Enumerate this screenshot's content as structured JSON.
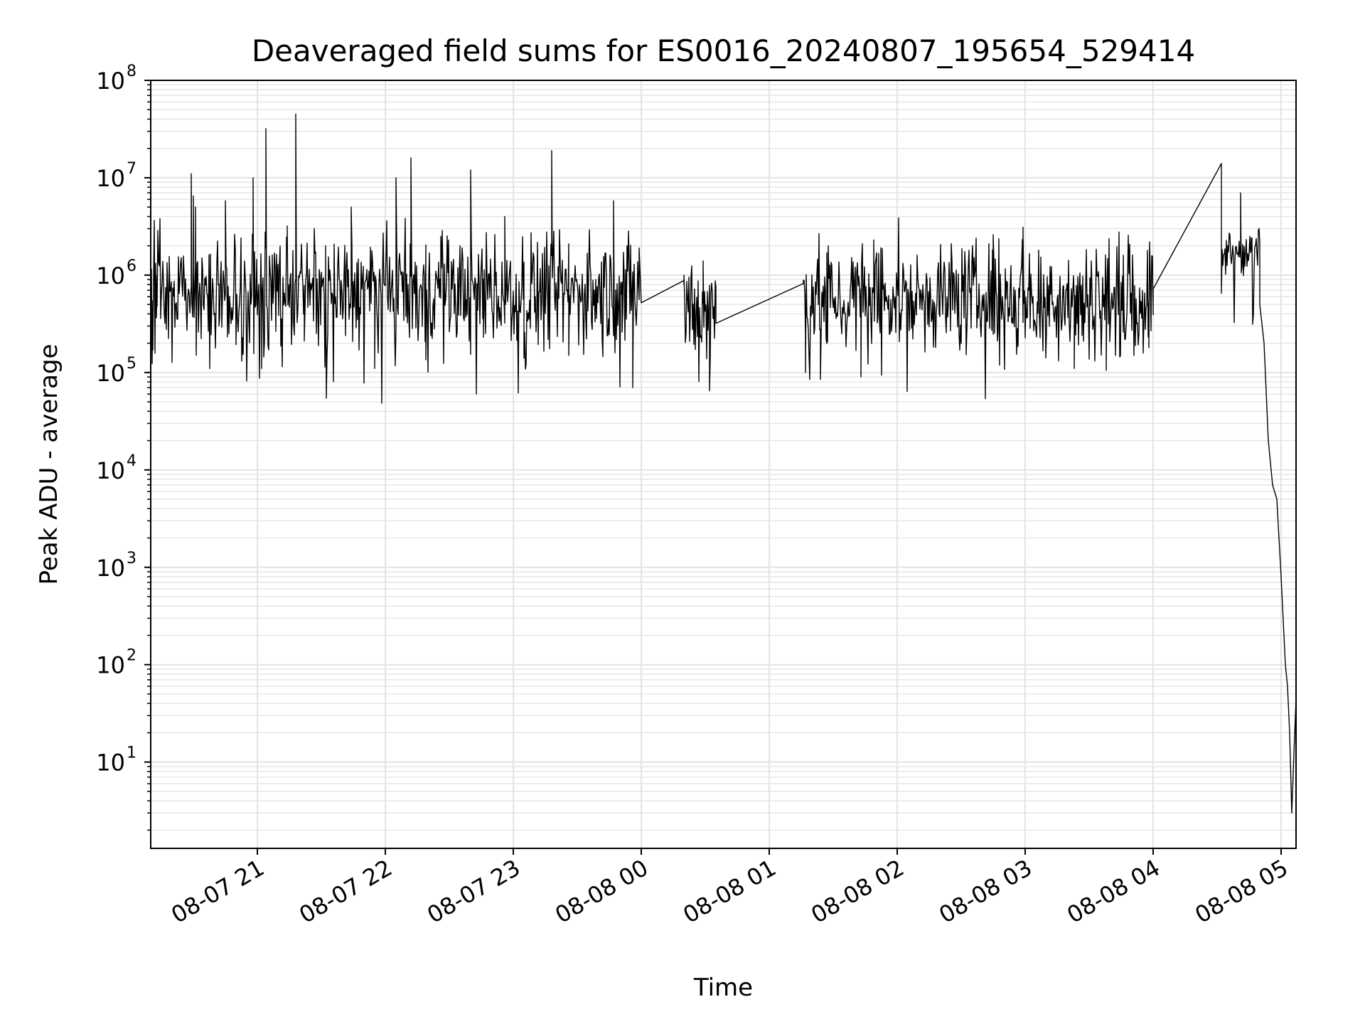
{
  "chart_data": {
    "type": "line",
    "title": "Deaveraged field sums for ES0016_20240807_195654_529414",
    "xlabel": "Time",
    "ylabel": "Peak ADU - average",
    "yscale": "log",
    "ylim": [
      1.3,
      100000000
    ],
    "xlim": [
      "2024-08-07 20:10",
      "2024-08-08 05:07"
    ],
    "grid": true,
    "x_ticks": [
      {
        "t": "2024-08-07 21:00",
        "label": "08-07 21"
      },
      {
        "t": "2024-08-07 22:00",
        "label": "08-07 22"
      },
      {
        "t": "2024-08-07 23:00",
        "label": "08-07 23"
      },
      {
        "t": "2024-08-08 00:00",
        "label": "08-08 00"
      },
      {
        "t": "2024-08-08 01:00",
        "label": "08-08 01"
      },
      {
        "t": "2024-08-08 02:00",
        "label": "08-08 02"
      },
      {
        "t": "2024-08-08 03:00",
        "label": "08-08 03"
      },
      {
        "t": "2024-08-08 04:00",
        "label": "08-08 04"
      },
      {
        "t": "2024-08-08 05:00",
        "label": "08-08 05"
      }
    ],
    "y_ticks": [
      {
        "value": 10,
        "base": "10",
        "exp": "1"
      },
      {
        "value": 100,
        "base": "10",
        "exp": "2"
      },
      {
        "value": 1000,
        "base": "10",
        "exp": "3"
      },
      {
        "value": 10000,
        "base": "10",
        "exp": "4"
      },
      {
        "value": 100000,
        "base": "10",
        "exp": "5"
      },
      {
        "value": 1000000,
        "base": "10",
        "exp": "6"
      },
      {
        "value": 10000000,
        "base": "10",
        "exp": "7"
      },
      {
        "value": 100000000,
        "base": "10",
        "exp": "8"
      }
    ],
    "series": [
      {
        "color": "#000000",
        "segments": [
          {
            "start": "2024-08-07 20:10",
            "end": "2024-08-07 23:59",
            "typical": 700000,
            "noise_decades": 0.28,
            "spikes": [
              {
                "t": "2024-08-07 20:10",
                "v": 60000
              },
              {
                "t": "2024-08-07 20:11",
                "v": 170000
              },
              {
                "t": "2024-08-07 20:13",
                "v": 480000
              },
              {
                "t": "2024-08-07 20:29",
                "v": 11000000
              },
              {
                "t": "2024-08-07 20:30",
                "v": 6500000
              },
              {
                "t": "2024-08-07 20:31",
                "v": 5000000
              },
              {
                "t": "2024-08-07 20:42",
                "v": 300000
              },
              {
                "t": "2024-08-07 20:45",
                "v": 5800000
              },
              {
                "t": "2024-08-07 20:53",
                "v": 170000
              },
              {
                "t": "2024-08-07 20:58",
                "v": 10000000
              },
              {
                "t": "2024-08-07 21:02",
                "v": 110000
              },
              {
                "t": "2024-08-07 21:04",
                "v": 32000000
              },
              {
                "t": "2024-08-07 21:14",
                "v": 3200000
              },
              {
                "t": "2024-08-07 21:18",
                "v": 45000000
              },
              {
                "t": "2024-08-07 21:22",
                "v": 210000
              },
              {
                "t": "2024-08-07 21:32",
                "v": 2000000
              },
              {
                "t": "2024-08-07 21:44",
                "v": 5000000
              },
              {
                "t": "2024-08-07 21:55",
                "v": 110000
              },
              {
                "t": "2024-08-07 22:05",
                "v": 10000000
              },
              {
                "t": "2024-08-07 22:12",
                "v": 16000000
              },
              {
                "t": "2024-08-07 22:19",
                "v": 135000
              },
              {
                "t": "2024-08-07 22:26",
                "v": 2500000
              },
              {
                "t": "2024-08-07 22:35",
                "v": 2000000
              },
              {
                "t": "2024-08-07 22:40",
                "v": 12000000
              },
              {
                "t": "2024-08-07 22:46",
                "v": 230000
              },
              {
                "t": "2024-08-07 22:56",
                "v": 4000000
              },
              {
                "t": "2024-08-07 23:05",
                "v": 140000
              },
              {
                "t": "2024-08-07 23:18",
                "v": 19000000
              },
              {
                "t": "2024-08-07 23:26",
                "v": 150000
              },
              {
                "t": "2024-08-07 23:47",
                "v": 5800000
              },
              {
                "t": "2024-08-07 23:51",
                "v": 260000
              },
              {
                "t": "2024-08-07 23:56",
                "v": 70000
              },
              {
                "t": "2024-08-07 23:59",
                "v": 1900000
              }
            ]
          },
          {
            "start": "2024-08-08 00:00",
            "end": "2024-08-08 00:20",
            "typical": 600000,
            "noise_decades": 0.02,
            "spikes": [
              {
                "t": "2024-08-08 00:00",
                "v": 520000
              },
              {
                "t": "2024-08-08 00:20",
                "v": 880000
              }
            ]
          },
          {
            "start": "2024-08-08 00:20",
            "end": "2024-08-08 00:35",
            "typical": 450000,
            "noise_decades": 0.3,
            "spikes": [
              {
                "t": "2024-08-08 00:20",
                "v": 1000000
              },
              {
                "t": "2024-08-08 00:29",
                "v": 1400000
              },
              {
                "t": "2024-08-08 00:32",
                "v": 65000
              }
            ]
          },
          {
            "start": "2024-08-08 00:35",
            "end": "2024-08-08 01:16",
            "typical": 500000,
            "noise_decades": 0.01,
            "spikes": [
              {
                "t": "2024-08-08 00:35",
                "v": 320000
              },
              {
                "t": "2024-08-08 01:16",
                "v": 820000
              }
            ]
          },
          {
            "start": "2024-08-08 01:16",
            "end": "2024-08-08 04:00",
            "typical": 600000,
            "noise_decades": 0.28,
            "spikes": [
              {
                "t": "2024-08-08 01:17",
                "v": 100000
              },
              {
                "t": "2024-08-08 01:24",
                "v": 85000
              },
              {
                "t": "2024-08-08 01:27",
                "v": 1700000
              },
              {
                "t": "2024-08-08 01:43",
                "v": 90000
              },
              {
                "t": "2024-08-08 01:49",
                "v": 2300000
              },
              {
                "t": "2024-08-08 02:45",
                "v": 2600000
              },
              {
                "t": "2024-08-08 02:59",
                "v": 3100000
              },
              {
                "t": "2024-08-08 03:23",
                "v": 110000
              },
              {
                "t": "2024-08-08 03:38",
                "v": 105000
              },
              {
                "t": "2024-08-08 03:46",
                "v": 1600000
              },
              {
                "t": "2024-08-08 03:58",
                "v": 180000
              }
            ]
          },
          {
            "start": "2024-08-08 04:00",
            "end": "2024-08-08 04:32",
            "typical": 3000000,
            "noise_decades": 0.01,
            "spikes": [
              {
                "t": "2024-08-08 04:00",
                "v": 720000
              },
              {
                "t": "2024-08-08 04:32",
                "v": 14000000
              }
            ]
          },
          {
            "start": "2024-08-08 04:32",
            "end": "2024-08-08 04:50",
            "typical": 1700000,
            "noise_decades": 0.12,
            "spikes": [
              {
                "t": "2024-08-08 04:32",
                "v": 650000
              },
              {
                "t": "2024-08-08 04:41",
                "v": 7000000
              },
              {
                "t": "2024-08-08 04:46",
                "v": 2400000
              }
            ]
          },
          {
            "start": "2024-08-08 04:50",
            "end": "2024-08-08 05:07",
            "typical": null,
            "noise_decades": 0.15,
            "spikes": [
              {
                "t": "2024-08-08 04:50",
                "v": 500000
              },
              {
                "t": "2024-08-08 04:52",
                "v": 200000
              },
              {
                "t": "2024-08-08 04:54",
                "v": 20000
              },
              {
                "t": "2024-08-08 04:56",
                "v": 7000
              },
              {
                "t": "2024-08-08 04:58",
                "v": 5000
              },
              {
                "t": "2024-08-08 05:00",
                "v": 800
              },
              {
                "t": "2024-08-08 05:02",
                "v": 100
              },
              {
                "t": "2024-08-08 05:03",
                "v": 60
              },
              {
                "t": "2024-08-08 05:04",
                "v": 20
              },
              {
                "t": "2024-08-08 05:05",
                "v": 3
              },
              {
                "t": "2024-08-08 05:06",
                "v": 12
              },
              {
                "t": "2024-08-08 05:07",
                "v": 45
              }
            ]
          }
        ]
      }
    ]
  }
}
